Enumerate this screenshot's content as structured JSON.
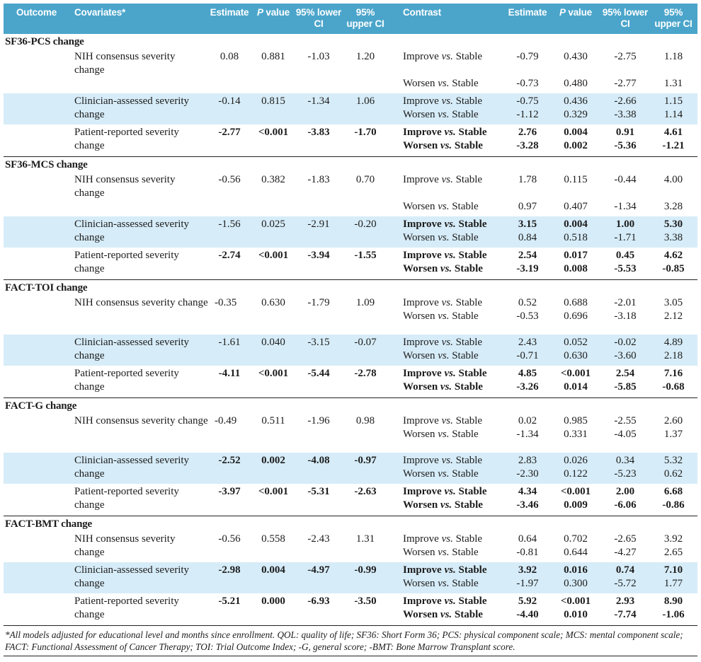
{
  "colors": {
    "header_bg": "#4ba5cb",
    "shaded_row": "#d6ecf8",
    "header_text": "#ffffff",
    "text": "#1c1c1c"
  },
  "table": {
    "header": {
      "outcome": "Outcome",
      "covariates": "Covariates*",
      "estimate": "Estimate",
      "p_value": "P value",
      "lower_ci": "95% lower CI",
      "upper_ci": "95% upper CI",
      "contrast": "Contrast",
      "estimate2": "Estimate",
      "p_value2": "P value",
      "lower_ci2": "95% lower CI",
      "upper_ci2": "95% upper CI"
    },
    "sections": [
      {
        "title": "SF36-PCS change",
        "blocks": [
          {
            "shaded": false,
            "covariate": "NIH consensus severity\nchange",
            "estimate": "0.08",
            "p": "0.881",
            "lower": "-1.03",
            "upper": "1.20",
            "bold": false,
            "contrasts": [
              {
                "label": "Improve vs. Stable",
                "estimate": "-0.79",
                "p": "0.430",
                "lower": "-2.75",
                "upper": "1.18",
                "bold": false,
                "row": 1
              },
              {
                "label": "Worsen vs. Stable",
                "estimate": "-0.73",
                "p": "0.480",
                "lower": "-2.77",
                "upper": "1.31",
                "bold": false,
                "row": 3
              }
            ]
          },
          {
            "shaded": true,
            "covariate": "Clinician-assessed severity\nchange",
            "estimate": "-0.14",
            "p": "0.815",
            "lower": "-1.34",
            "upper": "1.06",
            "bold": false,
            "contrasts": [
              {
                "label": "Improve vs. Stable",
                "estimate": "-0.75",
                "p": "0.436",
                "lower": "-2.66",
                "upper": "1.15",
                "bold": false
              },
              {
                "label": "Worsen vs. Stable",
                "estimate": "-1.12",
                "p": "0.329",
                "lower": "-3.38",
                "upper": "1.14",
                "bold": false
              }
            ]
          },
          {
            "shaded": false,
            "covariate": "Patient-reported severity\nchange",
            "estimate": "-2.77",
            "p": "<0.001",
            "lower": "-3.83",
            "upper": "-1.70",
            "bold": true,
            "contrasts": [
              {
                "label": "Improve vs. Stable",
                "estimate": "2.76",
                "p": "0.004",
                "lower": "0.91",
                "upper": "4.61",
                "bold": true
              },
              {
                "label": "Worsen vs. Stable",
                "estimate": "-3.28",
                "p": "0.002",
                "lower": "-5.36",
                "upper": "-1.21",
                "bold": true
              }
            ]
          }
        ]
      },
      {
        "title": "SF36-MCS change",
        "blocks": [
          {
            "shaded": false,
            "covariate": "NIH consensus severity\nchange",
            "estimate": "-0.56",
            "p": "0.382",
            "lower": "-1.83",
            "upper": "0.70",
            "bold": false,
            "contrasts": [
              {
                "label": "Improve vs. Stable",
                "estimate": "1.78",
                "p": "0.115",
                "lower": "-0.44",
                "upper": "4.00",
                "bold": false,
                "row": 1
              },
              {
                "label": "Worsen vs. Stable",
                "estimate": "0.97",
                "p": "0.407",
                "lower": "-1.34",
                "upper": "3.28",
                "bold": false,
                "row": 3
              }
            ]
          },
          {
            "shaded": true,
            "covariate": "Clinician-assessed severity\nchange",
            "estimate": "-1.56",
            "p": "0.025",
            "lower": "-2.91",
            "upper": "-0.20",
            "bold": false,
            "contrasts": [
              {
                "label": "Improve vs. Stable",
                "estimate": "3.15",
                "p": "0.004",
                "lower": "1.00",
                "upper": "5.30",
                "bold": true
              },
              {
                "label": "Worsen vs. Stable",
                "estimate": "0.84",
                "p": "0.518",
                "lower": "-1.71",
                "upper": "3.38",
                "bold": false
              }
            ]
          },
          {
            "shaded": false,
            "covariate": "Patient-reported severity\nchange",
            "estimate": "-2.74",
            "p": "<0.001",
            "lower": "-3.94",
            "upper": "-1.55",
            "bold": true,
            "contrasts": [
              {
                "label": "Improve vs. Stable",
                "estimate": "2.54",
                "p": "0.017",
                "lower": "0.45",
                "upper": "4.62",
                "bold": true
              },
              {
                "label": "Worsen vs. Stable",
                "estimate": "-3.19",
                "p": "0.008",
                "lower": "-5.53",
                "upper": "-0.85",
                "bold": true
              }
            ]
          }
        ]
      },
      {
        "title": "FACT-TOI change",
        "blocks": [
          {
            "shaded": false,
            "jam": true,
            "gap_after": true,
            "covariate": "NIH consensus severity change",
            "estimate": "-0.35",
            "p": "0.630",
            "lower": "-1.79",
            "upper": "1.09",
            "bold": false,
            "contrasts": [
              {
                "label": "Improve vs. Stable",
                "estimate": "0.52",
                "p": "0.688",
                "lower": "-2.01",
                "upper": "3.05",
                "bold": false
              },
              {
                "label": "Worsen vs. Stable",
                "estimate": "-0.53",
                "p": "0.696",
                "lower": "-3.18",
                "upper": "2.12",
                "bold": false
              }
            ]
          },
          {
            "shaded": true,
            "covariate": "Clinician-assessed severity\nchange",
            "estimate": "-1.61",
            "p": "0.040",
            "lower": "-3.15",
            "upper": "-0.07",
            "bold": false,
            "contrasts": [
              {
                "label": "Improve vs. Stable",
                "estimate": "2.43",
                "p": "0.052",
                "lower": "-0.02",
                "upper": "4.89",
                "bold": false
              },
              {
                "label": "Worsen vs. Stable",
                "estimate": "-0.71",
                "p": "0.630",
                "lower": "-3.60",
                "upper": "2.18",
                "bold": false
              }
            ]
          },
          {
            "shaded": false,
            "covariate": "Patient-reported severity\nchange",
            "estimate": "-4.11",
            "p": "<0.001",
            "lower": "-5.44",
            "upper": "-2.78",
            "bold": true,
            "contrasts": [
              {
                "label": "Improve vs. Stable",
                "estimate": "4.85",
                "p": "<0.001",
                "lower": "2.54",
                "upper": "7.16",
                "bold": true
              },
              {
                "label": "Worsen vs. Stable",
                "estimate": "-3.26",
                "p": "0.014",
                "lower": "-5.85",
                "upper": "-0.68",
                "bold": true
              }
            ]
          }
        ]
      },
      {
        "title": "FACT-G change",
        "blocks": [
          {
            "shaded": false,
            "jam": true,
            "gap_after": true,
            "covariate": "NIH consensus severity change",
            "estimate": "-0.49",
            "p": "0.511",
            "lower": "-1.96",
            "upper": "0.98",
            "bold": false,
            "contrasts": [
              {
                "label": "Improve vs. Stable",
                "estimate": "0.02",
                "p": "0.985",
                "lower": "-2.55",
                "upper": "2.60",
                "bold": false
              },
              {
                "label": "Worsen vs. Stable",
                "estimate": "-1.34",
                "p": "0.331",
                "lower": "-4.05",
                "upper": "1.37",
                "bold": false
              }
            ]
          },
          {
            "shaded": true,
            "covariate": "Clinician-assessed severity\nchange",
            "estimate": "-2.52",
            "p": "0.002",
            "lower": "-4.08",
            "upper": "-0.97",
            "bold": true,
            "contrasts": [
              {
                "label": "Improve vs. Stable",
                "estimate": "2.83",
                "p": "0.026",
                "lower": "0.34",
                "upper": "5.32",
                "bold": false
              },
              {
                "label": "Worsen vs. Stable",
                "estimate": "-2.30",
                "p": "0.122",
                "lower": "-5.23",
                "upper": "0.62",
                "bold": false
              }
            ]
          },
          {
            "shaded": false,
            "covariate": "Patient-reported severity\nchange",
            "estimate": "-3.97",
            "p": "<0.001",
            "lower": "-5.31",
            "upper": "-2.63",
            "bold": true,
            "contrasts": [
              {
                "label": "Improve vs. Stable",
                "estimate": "4.34",
                "p": "<0.001",
                "lower": "2.00",
                "upper": "6.68",
                "bold": true
              },
              {
                "label": "Worsen vs. Stable",
                "estimate": "-3.46",
                "p": "0.009",
                "lower": "-6.06",
                "upper": "-0.86",
                "bold": true
              }
            ]
          }
        ]
      },
      {
        "title": "FACT-BMT change",
        "blocks": [
          {
            "shaded": false,
            "covariate": "NIH consensus severity\nchange",
            "estimate": "-0.56",
            "p": "0.558",
            "lower": "-2.43",
            "upper": "1.31",
            "bold": false,
            "contrasts": [
              {
                "label": "Improve vs. Stable",
                "estimate": "0.64",
                "p": "0.702",
                "lower": "-2.65",
                "upper": "3.92",
                "bold": false
              },
              {
                "label": "Worsen vs. Stable",
                "estimate": "-0.81",
                "p": "0.644",
                "lower": "-4.27",
                "upper": "2.65",
                "bold": false
              }
            ]
          },
          {
            "shaded": true,
            "covariate": "Clinician-assessed severity\nchange",
            "estimate": "-2.98",
            "p": "0.004",
            "lower": "-4.97",
            "upper": "-0.99",
            "bold": true,
            "contrasts": [
              {
                "label": "Improve vs. Stable",
                "estimate": "3.92",
                "p": "0.016",
                "lower": "0.74",
                "upper": "7.10",
                "bold": true
              },
              {
                "label": "Worsen vs. Stable",
                "estimate": "-1.97",
                "p": "0.300",
                "lower": "-5.72",
                "upper": "1.77",
                "bold": false
              }
            ]
          },
          {
            "shaded": false,
            "covariate": "Patient-reported severity\nchange",
            "estimate": "-5.21",
            "p": "0.000",
            "lower": "-6.93",
            "upper": "-3.50",
            "bold": true,
            "contrasts": [
              {
                "label": "Improve vs. Stable",
                "estimate": "5.92",
                "p": "<0.001",
                "lower": "2.93",
                "upper": "8.90",
                "bold": true
              },
              {
                "label": "Worsen vs. Stable",
                "estimate": "-4.40",
                "p": "0.010",
                "lower": "-7.74",
                "upper": "-1.06",
                "bold": true
              }
            ]
          }
        ]
      }
    ]
  },
  "footnote": {
    "text": "*All models adjusted for educational level and months since enrollment. QOL: quality of life; SF36: Short Form 36; PCS: physical component scale; MCS: mental component scale; FACT: Functional Assessment of Cancer Therapy; TOI: Trial Outcome Index; -G, general score; -BMT: Bone Marrow Transplant score."
  }
}
